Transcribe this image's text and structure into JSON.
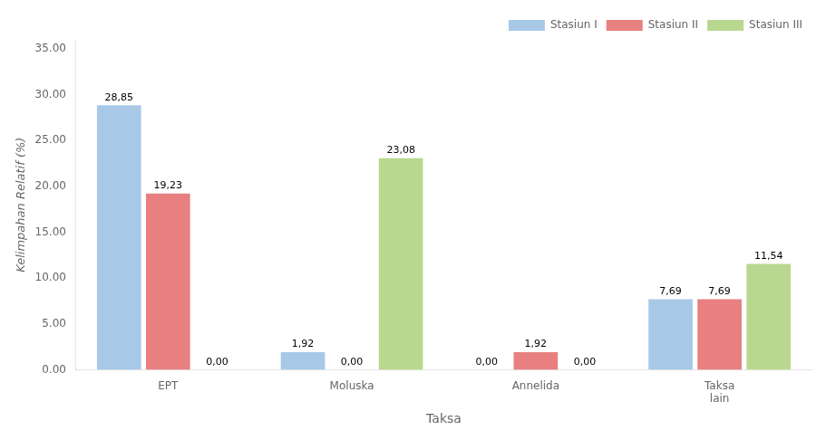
{
  "chart_data": {
    "type": "bar",
    "categories": [
      "EPT",
      "Moluska",
      "Annelida",
      "Taksa\nlain"
    ],
    "series": [
      {
        "name": "Stasiun I",
        "color": "#a8c8e8",
        "values": [
          28.85,
          1.92,
          0.0,
          7.69
        ],
        "value_labels": [
          "28,85",
          "1,92",
          "0,00",
          "7,69"
        ]
      },
      {
        "name": "Stasiun II",
        "color": "#e88080",
        "values": [
          19.23,
          0.0,
          1.92,
          7.69
        ],
        "value_labels": [
          "19,23",
          "0,00",
          "1,92",
          "7,69"
        ]
      },
      {
        "name": "Stasiun III",
        "color": "#b8d890",
        "values": [
          0.0,
          23.08,
          0.0,
          11.54
        ],
        "value_labels": [
          "0,00",
          "23,08",
          "0,00",
          "11,54"
        ]
      }
    ],
    "xlabel": "Taksa",
    "ylabel": "Kelimpahan Relatif (%)",
    "ylim": [
      0,
      36
    ],
    "yticks": [
      {
        "value": 0,
        "label": "0.00"
      },
      {
        "value": 5,
        "label": "5.00"
      },
      {
        "value": 10,
        "label": "10.00"
      },
      {
        "value": 15,
        "label": "15.00"
      },
      {
        "value": 20,
        "label": "20.00"
      },
      {
        "value": 25,
        "label": "25.00"
      },
      {
        "value": 30,
        "label": "30.00"
      },
      {
        "value": 35,
        "label": "35.00"
      }
    ],
    "grid": false,
    "legend": "upper right",
    "data_labels": true
  }
}
